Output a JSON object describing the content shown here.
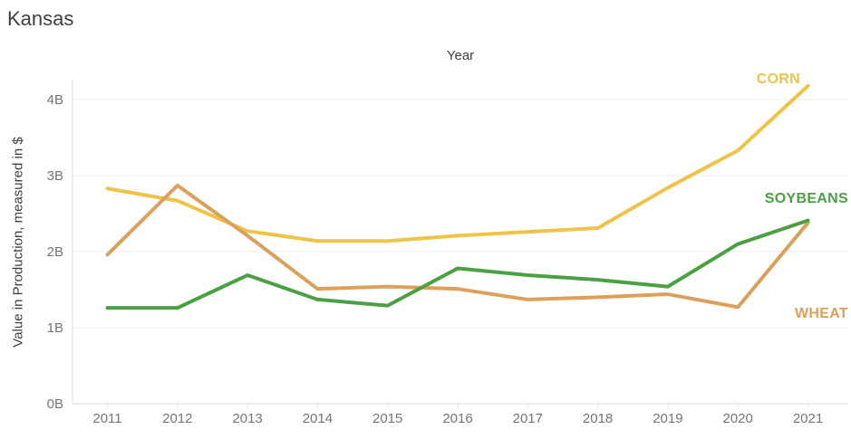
{
  "page": {
    "title": "Kansas"
  },
  "chart_data": {
    "type": "line",
    "title": "Kansas",
    "xlabel": "Year",
    "ylabel": "Value in Production, measured in $",
    "x": [
      2011,
      2012,
      2013,
      2014,
      2015,
      2016,
      2017,
      2018,
      2019,
      2020,
      2021
    ],
    "x_tick_labels": [
      "2011",
      "2012",
      "2013",
      "2014",
      "2015",
      "2016",
      "2017",
      "2018",
      "2019",
      "2020",
      "2021"
    ],
    "y_tick_labels": [
      "0B",
      "1B",
      "2B",
      "3B",
      "4B"
    ],
    "ylim": [
      0,
      4.26
    ],
    "y_unit_suffix": "B",
    "grid": "horizontal",
    "legend_position": "inline-end-labels",
    "series": [
      {
        "name": "CORN",
        "color": "#EFC348",
        "values": [
          2.83,
          2.67,
          2.27,
          2.14,
          2.14,
          2.21,
          2.26,
          2.31,
          2.84,
          3.33,
          4.18
        ]
      },
      {
        "name": "WHEAT",
        "color": "#DDA05C",
        "values": [
          1.96,
          2.87,
          2.21,
          1.51,
          1.54,
          1.51,
          1.37,
          1.4,
          1.44,
          1.27,
          2.38
        ]
      },
      {
        "name": "SOYBEANS",
        "color": "#4AA043",
        "values": [
          1.26,
          1.26,
          1.69,
          1.37,
          1.29,
          1.78,
          1.69,
          1.63,
          1.54,
          2.1,
          2.41
        ]
      }
    ]
  },
  "colors": {
    "title_text": "#3c4043",
    "axis_title_text": "#3c4043",
    "tick_text": "#757575",
    "gridline": "#ececec",
    "axis_line": "#dcdcdc",
    "background": "#ffffff"
  }
}
